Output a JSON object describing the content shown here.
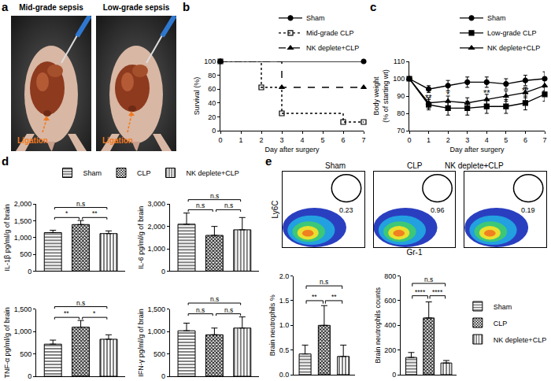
{
  "chart_data": [
    {
      "panel": "a",
      "type": "photo",
      "images": [
        {
          "title": "Mid-grade sepsis",
          "label": "Ligation"
        },
        {
          "title": "Low-grade sepsis",
          "label": "Ligation"
        }
      ]
    },
    {
      "panel": "b",
      "type": "step",
      "x_label": "Day after surgery",
      "y_label": "Survival (%)",
      "xlim": [
        0,
        7
      ],
      "xticks": [
        0,
        1,
        2,
        3,
        4,
        5,
        6,
        7
      ],
      "ylim": [
        0,
        100
      ],
      "yticks": [
        0,
        20,
        40,
        60,
        80,
        100
      ],
      "grid": false,
      "legend": "top right",
      "series": [
        {
          "name": "Sham",
          "x": [
            0,
            7
          ],
          "values": [
            100,
            100
          ],
          "color": "#000000",
          "marker": "circle",
          "line_style": "solid"
        },
        {
          "name": "Mid-grade CLP",
          "x": [
            0,
            2,
            3,
            6,
            7
          ],
          "values": [
            100,
            62.5,
            25,
            12.5,
            12.5
          ],
          "color": "#000000",
          "marker": "open_square",
          "line_style": "dotted"
        },
        {
          "name": "NK deplete+CLP",
          "x": [
            0,
            3,
            7
          ],
          "values": [
            100,
            62.5,
            62.5
          ],
          "color": "#000000",
          "marker": "triangle",
          "line_style": "dashed"
        }
      ]
    },
    {
      "panel": "c",
      "type": "line",
      "x_label": "Day after surgery",
      "y_label": "Body weight\n(% of starting wt)",
      "x": [
        0,
        1,
        2,
        3,
        4,
        5,
        6,
        7
      ],
      "xlim": [
        0,
        7
      ],
      "xticks": [
        0,
        1,
        2,
        3,
        4,
        5,
        6,
        7
      ],
      "ylim": [
        70,
        110
      ],
      "yticks": [
        70,
        80,
        90,
        100,
        110
      ],
      "grid": false,
      "legend": "top right",
      "series": [
        {
          "name": "Sham",
          "values": [
            100,
            94,
            96,
            98,
            98,
            97,
            99,
            100
          ],
          "errors": [
            1,
            2,
            3,
            3,
            3,
            3,
            3,
            4
          ],
          "color": "#000000",
          "marker": "circle",
          "line_style": "solid"
        },
        {
          "name": "Low-grade CLP",
          "values": [
            100,
            85,
            83,
            83,
            84,
            84,
            86,
            91
          ],
          "errors": [
            1,
            3,
            4,
            4,
            4,
            4,
            4,
            4
          ],
          "color": "#000000",
          "marker": "square",
          "line_style": "solid"
        },
        {
          "name": "NK deplete+CLP",
          "values": [
            100,
            86,
            87,
            86,
            88,
            90,
            92,
            96
          ],
          "errors": [
            1,
            3,
            3,
            3,
            3,
            3,
            3,
            3
          ],
          "color": "#000000",
          "marker": "triangle",
          "line_style": "solid"
        }
      ],
      "annotations": [
        {
          "x": 1,
          "y": 89,
          "text": "**"
        },
        {
          "x": 2,
          "y": 91,
          "text": "*"
        },
        {
          "x": 4,
          "y": 92,
          "text": "**"
        },
        {
          "x": 6,
          "y": 93,
          "text": "**"
        }
      ]
    },
    {
      "panel": "d",
      "type": "bar",
      "y_label": "IL-1β pg/ml/g of brain",
      "tick_labels": "y",
      "legend": "top",
      "categories": [
        "Sham",
        "CLP",
        "NK deplete+CLP"
      ],
      "values": [
        1150,
        1390,
        1120
      ],
      "errors": [
        70,
        120,
        80
      ],
      "ylim": [
        0,
        2000
      ],
      "yticks": [
        0,
        500,
        {
          "value": 1000,
          "label": "1,000"
        },
        {
          "value": 1500,
          "label": "1,500"
        },
        {
          "value": 2000,
          "label": "2,000"
        }
      ],
      "comparisons": [
        {
          "from": "Sham",
          "to": "NK deplete+CLP",
          "y": 1900,
          "text": "n.s"
        },
        {
          "from": "Sham",
          "to": "CLP",
          "y": 1600,
          "text": "*"
        },
        {
          "from": "CLP",
          "to": "NK deplete+CLP",
          "y": 1600,
          "text": "**"
        }
      ]
    },
    {
      "panel": "d",
      "type": "bar",
      "y_label": "IL-6 pg/ml/g of brain",
      "tick_labels": "y",
      "categories": [
        "Sham",
        "CLP",
        "NK deplete+CLP"
      ],
      "values": [
        2100,
        1600,
        1850
      ],
      "errors": [
        500,
        400,
        550
      ],
      "ylim": [
        0,
        3000
      ],
      "yticks": [
        0,
        {
          "value": 1000,
          "label": "1,000"
        },
        {
          "value": 2000,
          "label": "2,000"
        },
        {
          "value": 3000,
          "label": "3,000"
        }
      ],
      "comparisons": [
        {
          "from": "Sham",
          "to": "NK deplete+CLP",
          "y": 3200,
          "text": "n.s"
        },
        {
          "from": "Sham",
          "to": "CLP",
          "y": 2750,
          "text": "n.s"
        },
        {
          "from": "CLP",
          "to": "NK deplete+CLP",
          "y": 2750,
          "text": "n.s"
        }
      ]
    },
    {
      "panel": "d",
      "type": "bar",
      "y_label": "TNF-α pg/ml/g of brain",
      "tick_labels": "y",
      "categories": [
        "Sham",
        "CLP",
        "NK deplete+CLP"
      ],
      "values": [
        720,
        1100,
        830
      ],
      "errors": [
        90,
        150,
        100
      ],
      "ylim": [
        0,
        1500
      ],
      "yticks": [
        0,
        500,
        {
          "value": 1000,
          "label": "1,000"
        },
        {
          "value": 1500,
          "label": "1,500"
        }
      ],
      "comparisons": [
        {
          "from": "Sham",
          "to": "NK deplete+CLP",
          "y": 1560,
          "text": "n.s"
        },
        {
          "from": "Sham",
          "to": "CLP",
          "y": 1320,
          "text": "**"
        },
        {
          "from": "CLP",
          "to": "NK deplete+CLP",
          "y": 1320,
          "text": "*"
        }
      ]
    },
    {
      "panel": "d",
      "type": "bar",
      "y_label": "IFN-γ pg/ml/g of brain",
      "tick_labels": "y",
      "categories": [
        "Sham",
        "CLP",
        "NK deplete+CLP"
      ],
      "values": [
        1020,
        930,
        1080
      ],
      "errors": [
        170,
        150,
        250
      ],
      "ylim": [
        0,
        1500
      ],
      "yticks": [
        0,
        500,
        {
          "value": 1000,
          "label": "1,000"
        },
        {
          "value": 1500,
          "label": "1,500"
        }
      ],
      "comparisons": [
        {
          "from": "Sham",
          "to": "NK deplete+CLP",
          "y": 1640,
          "text": "n.s"
        },
        {
          "from": "Sham",
          "to": "CLP",
          "y": 1400,
          "text": "n.s"
        },
        {
          "from": "CLP",
          "to": "NK deplete+CLP",
          "y": 1400,
          "text": "n.s"
        }
      ]
    },
    {
      "panel": "e",
      "type": "flow_cytometry",
      "x_label": "Gr-1",
      "y_label": "Ly6C",
      "tick_labels": false,
      "plots": [
        {
          "title": "Sham",
          "gate_value": 0.23
        },
        {
          "title": "CLP",
          "gate_value": 0.96
        },
        {
          "title": "NK deplete+CLP",
          "gate_value": 0.19
        }
      ]
    },
    {
      "panel": "e",
      "type": "bar",
      "y_label": "Brain neutrophils %",
      "tick_labels": "y",
      "categories": [
        "Sham",
        "CLP",
        "NK deplete+CLP"
      ],
      "values": [
        0.42,
        1.0,
        0.37
      ],
      "errors": [
        0.18,
        0.4,
        0.23
      ],
      "ylim": [
        0,
        2
      ],
      "yticks": [
        {
          "value": 0,
          "label": "0.0"
        },
        0.5,
        {
          "value": 1,
          "label": "1.0"
        },
        1.5,
        {
          "value": 2,
          "label": "2.0"
        }
      ],
      "comparisons": [
        {
          "from": "Sham",
          "to": "NK deplete+CLP",
          "y": 1.8,
          "text": "n.s"
        },
        {
          "from": "Sham",
          "to": "CLP",
          "y": 1.5,
          "text": "**"
        },
        {
          "from": "CLP",
          "to": "NK deplete+CLP",
          "y": 1.5,
          "text": "**"
        }
      ]
    },
    {
      "panel": "e",
      "type": "bar",
      "y_label": "Brain neutrophils counts",
      "tick_labels": "y",
      "legend": "right",
      "categories": [
        "Sham",
        "CLP",
        "NK deplete+CLP"
      ],
      "values": [
        140,
        460,
        95
      ],
      "errors": [
        40,
        130,
        20
      ],
      "ylim": [
        0,
        800
      ],
      "yticks": [
        0,
        200,
        400,
        600,
        800
      ],
      "comparisons": [
        {
          "from": "Sham",
          "to": "NK deplete+CLP",
          "y": 740,
          "text": "n.s"
        },
        {
          "from": "Sham",
          "to": "CLP",
          "y": 640,
          "text": "****"
        },
        {
          "from": "CLP",
          "to": "NK deplete+CLP",
          "y": 640,
          "text": "****"
        }
      ]
    }
  ]
}
